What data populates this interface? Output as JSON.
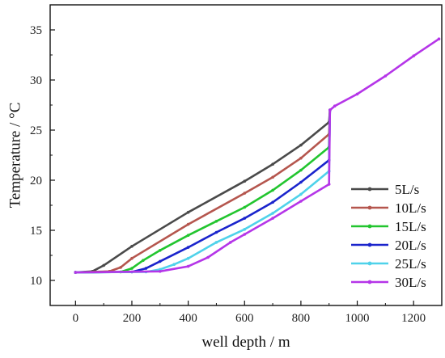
{
  "chart_data": {
    "type": "line",
    "title": "",
    "xlabel": "well depth / m",
    "ylabel": "Temperature / °C",
    "xlim": [
      -90,
      1300
    ],
    "ylim": [
      7.5,
      37.5
    ],
    "xticks": [
      0,
      200,
      400,
      600,
      800,
      1000,
      1200
    ],
    "yticks": [
      10,
      15,
      20,
      25,
      30,
      35
    ],
    "grid": false,
    "legend_position": "bottom-right",
    "series": [
      {
        "name": "5L/s",
        "color": "#4a4a4a",
        "points": [
          [
            0,
            10.8
          ],
          [
            60,
            10.9
          ],
          [
            100,
            11.5
          ],
          [
            200,
            13.4
          ],
          [
            400,
            16.8
          ],
          [
            600,
            19.9
          ],
          [
            700,
            21.6
          ],
          [
            800,
            23.5
          ],
          [
            900,
            25.8
          ],
          [
            903,
            27.0
          ]
        ]
      },
      {
        "name": "10L/s",
        "color": "#b5564e",
        "points": [
          [
            0,
            10.8
          ],
          [
            120,
            10.9
          ],
          [
            160,
            11.3
          ],
          [
            200,
            12.2
          ],
          [
            400,
            15.6
          ],
          [
            600,
            18.7
          ],
          [
            700,
            20.3
          ],
          [
            800,
            22.2
          ],
          [
            900,
            24.6
          ],
          [
            903,
            27.0
          ]
        ]
      },
      {
        "name": "15L/s",
        "color": "#22c52f",
        "points": [
          [
            0,
            10.8
          ],
          [
            160,
            10.85
          ],
          [
            200,
            11.2
          ],
          [
            240,
            12.0
          ],
          [
            300,
            13.0
          ],
          [
            400,
            14.5
          ],
          [
            500,
            15.9
          ],
          [
            600,
            17.3
          ],
          [
            700,
            19.0
          ],
          [
            800,
            21.0
          ],
          [
            900,
            23.3
          ],
          [
            903,
            27.0
          ]
        ]
      },
      {
        "name": "20L/s",
        "color": "#1a24cc",
        "points": [
          [
            0,
            10.8
          ],
          [
            200,
            10.85
          ],
          [
            250,
            11.2
          ],
          [
            300,
            11.9
          ],
          [
            400,
            13.3
          ],
          [
            500,
            14.8
          ],
          [
            600,
            16.2
          ],
          [
            700,
            17.8
          ],
          [
            800,
            19.8
          ],
          [
            900,
            22.0
          ],
          [
            903,
            27.0
          ]
        ]
      },
      {
        "name": "25L/s",
        "color": "#4fd2ea",
        "points": [
          [
            0,
            10.8
          ],
          [
            250,
            10.85
          ],
          [
            300,
            11.1
          ],
          [
            350,
            11.6
          ],
          [
            400,
            12.2
          ],
          [
            500,
            13.8
          ],
          [
            600,
            15.1
          ],
          [
            700,
            16.7
          ],
          [
            800,
            18.6
          ],
          [
            900,
            20.9
          ],
          [
            903,
            27.0
          ]
        ]
      },
      {
        "name": "30L/s",
        "color": "#b535e8",
        "points": [
          [
            0,
            10.8
          ],
          [
            300,
            10.9
          ],
          [
            400,
            11.4
          ],
          [
            470,
            12.3
          ],
          [
            550,
            13.8
          ],
          [
            600,
            14.6
          ],
          [
            700,
            16.2
          ],
          [
            800,
            17.9
          ],
          [
            900,
            19.6
          ],
          [
            903,
            27.0
          ],
          [
            920,
            27.4
          ],
          [
            1000,
            28.6
          ],
          [
            1100,
            30.4
          ],
          [
            1200,
            32.4
          ],
          [
            1290,
            34.1
          ]
        ]
      }
    ]
  }
}
